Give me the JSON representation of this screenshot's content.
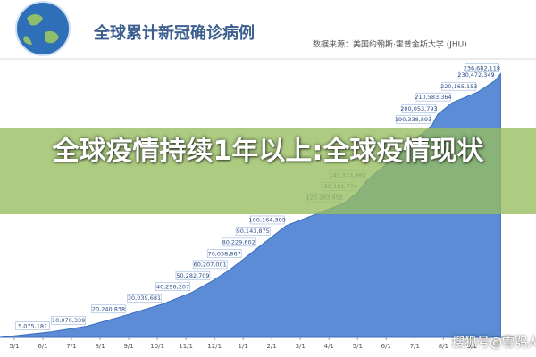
{
  "chart_data": {
    "type": "area",
    "title": "全球累计新冠确诊病例",
    "subtitle": "数据来源：美国约翰斯·霍普金斯大学 (JHU)",
    "overlay_title": "全球疫情持续1年以上:全球疫情现状",
    "watermark": "搜狐号@雪鸮人",
    "color": "#4a7fd0",
    "xlim": [
      -0.5,
      17.3
    ],
    "xticks": [
      {
        "value": 0,
        "label": "5/1"
      },
      {
        "value": 1,
        "label": "6/1"
      },
      {
        "value": 2,
        "label": "7/1"
      },
      {
        "value": 3,
        "label": "8/1"
      },
      {
        "value": 4,
        "label": "9/1"
      },
      {
        "value": 5,
        "label": "10/1"
      },
      {
        "value": 6,
        "label": "11/1"
      },
      {
        "value": 7,
        "label": "12/1"
      },
      {
        "value": 8,
        "label": "1/1"
      },
      {
        "value": 9,
        "label": "2/1"
      },
      {
        "value": 10,
        "label": "3/1"
      },
      {
        "value": 11,
        "label": "4/1"
      },
      {
        "value": 12,
        "label": "5/1"
      },
      {
        "value": 13,
        "label": "6/1"
      },
      {
        "value": 14,
        "label": "7/1"
      },
      {
        "value": 15,
        "label": "8/1"
      },
      {
        "value": 16,
        "label": "9/1"
      }
    ],
    "ylim": [
      0,
      250000000
    ],
    "x": [
      1.3,
      2.55,
      3.95,
      5.2,
      6.2,
      6.9,
      7.5,
      8.0,
      8.5,
      9.0,
      9.5,
      11.5,
      12.0,
      12.3,
      14.6,
      14.8,
      15.3,
      16.2,
      16.8,
      17.0
    ],
    "values": [
      5075181,
      10070339,
      20240838,
      30039681,
      40296207,
      50282709,
      60207001,
      70058867,
      80229602,
      90143875,
      100164389,
      120163952,
      130181770,
      140373893,
      190338893,
      200053793,
      210583364,
      220165153,
      230472349,
      236682118
    ],
    "value_labels": [
      "5,075,181",
      "10,070,339",
      "20,240,838",
      "30,039,681",
      "40,296,207",
      "50,282,709",
      "60,207,001",
      "70,058,867",
      "80,229,602",
      "90,143,875",
      "100,164,389",
      "120,163,952",
      "130,181,770",
      "140,373,893",
      "190,338,893",
      "200,053,793",
      "210,583,364",
      "220,165,153",
      "230,472,349",
      "236,682,118"
    ]
  }
}
